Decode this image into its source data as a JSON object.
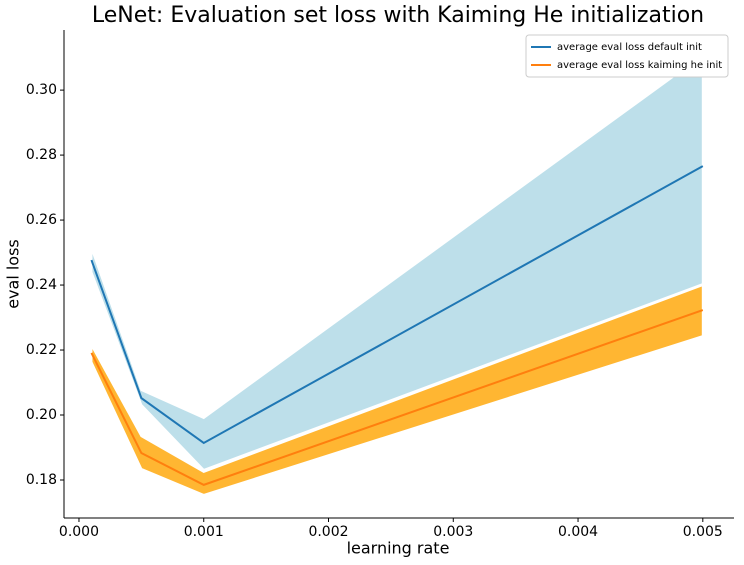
{
  "chart_data": {
    "type": "line",
    "title": "LeNet: Evaluation set loss with Kaiming He initialization",
    "x_label": "learning rate",
    "y_label": "eval loss",
    "x": [
      0.0001,
      0.0005,
      0.001,
      0.005
    ],
    "series": [
      {
        "name": "average eval loss default init",
        "color": "#1f77b4",
        "band_color": "#add8e6",
        "values": [
          0.2477,
          0.2052,
          0.1914,
          0.2766
        ],
        "lower": [
          0.244,
          0.2031,
          0.1831,
          0.2403
        ],
        "upper": [
          0.2514,
          0.2077,
          0.1991,
          0.3108
        ]
      },
      {
        "name": "average eval loss kaiming he init",
        "color": "#ff7f0e",
        "band_color": "#ffa500",
        "values": [
          0.2191,
          0.1883,
          0.1785,
          0.2323
        ],
        "lower": [
          0.2163,
          0.1834,
          0.1754,
          0.2243
        ],
        "upper": [
          0.2215,
          0.1935,
          0.1825,
          0.24
        ]
      }
    ],
    "xlim": [
      -0.00012,
      0.00525
    ],
    "xticks": [
      {
        "value": 0,
        "label": "0.000"
      },
      0.001,
      0.002,
      0.003,
      0.004,
      0.005
    ],
    "ylim": [
      0.1683,
      0.3185
    ],
    "yticks": [
      0.18,
      {
        "value": 0.2,
        "label": "0.20"
      },
      0.22,
      0.24,
      0.26,
      0.28,
      {
        "value": 0.3,
        "label": "0.30"
      }
    ],
    "grid": false,
    "legend": "upper right"
  }
}
